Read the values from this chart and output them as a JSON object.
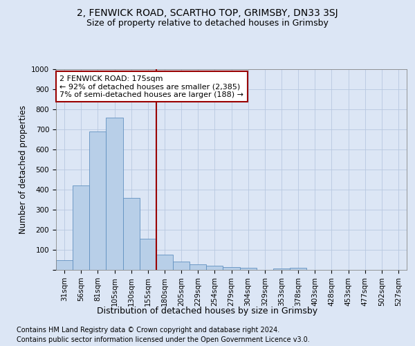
{
  "title1": "2, FENWICK ROAD, SCARTHO TOP, GRIMSBY, DN33 3SJ",
  "title2": "Size of property relative to detached houses in Grimsby",
  "xlabel": "Distribution of detached houses by size in Grimsby",
  "ylabel": "Number of detached properties",
  "categories": [
    "31sqm",
    "56sqm",
    "81sqm",
    "105sqm",
    "130sqm",
    "155sqm",
    "180sqm",
    "205sqm",
    "229sqm",
    "254sqm",
    "279sqm",
    "304sqm",
    "329sqm",
    "353sqm",
    "378sqm",
    "403sqm",
    "428sqm",
    "453sqm",
    "477sqm",
    "502sqm",
    "527sqm"
  ],
  "values": [
    50,
    420,
    690,
    760,
    360,
    155,
    75,
    40,
    28,
    20,
    13,
    10,
    0,
    8,
    10,
    0,
    0,
    0,
    0,
    0,
    0
  ],
  "bar_color": "#b8cfe8",
  "bar_edge_color": "#6090c0",
  "vline_color": "#990000",
  "vline_x_idx": 6,
  "annotation_text": "2 FENWICK ROAD: 175sqm\n← 92% of detached houses are smaller (2,385)\n7% of semi-detached houses are larger (188) →",
  "annotation_box_facecolor": "#ffffff",
  "annotation_box_edgecolor": "#990000",
  "ylim": [
    0,
    1000
  ],
  "yticks": [
    0,
    100,
    200,
    300,
    400,
    500,
    600,
    700,
    800,
    900,
    1000
  ],
  "footer1": "Contains HM Land Registry data © Crown copyright and database right 2024.",
  "footer2": "Contains public sector information licensed under the Open Government Licence v3.0.",
  "fig_bg_color": "#dce6f5",
  "plot_bg_color": "#dce6f5",
  "grid_color": "#b8c8e0",
  "title1_fontsize": 10,
  "title2_fontsize": 9,
  "xlabel_fontsize": 9,
  "ylabel_fontsize": 8.5,
  "tick_fontsize": 7.5,
  "annotation_fontsize": 8,
  "footer_fontsize": 7
}
